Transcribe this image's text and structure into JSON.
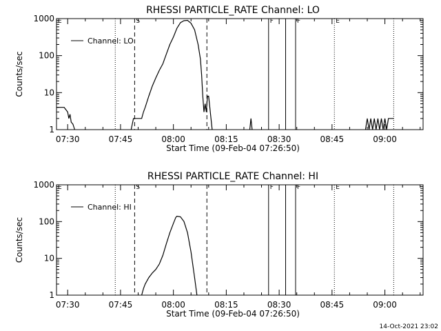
{
  "footer_timestamp": "14-Oct-2021 23:02",
  "chart_data": [
    {
      "type": "line",
      "title": "RHESSI PARTICLE_RATE Channel: LO",
      "xlabel": "Start Time (09-Feb-04 07:26:50)",
      "ylabel": "Counts/sec",
      "yscale": "log",
      "ylim": [
        1,
        1000
      ],
      "xlim": [
        "07:26:50",
        "09:10:50"
      ],
      "xticks": [
        "07:30",
        "07:45",
        "08:00",
        "08:15",
        "08:30",
        "08:45",
        "09:00"
      ],
      "yticks": [
        "1",
        "10",
        "100",
        "1000"
      ],
      "grid": false,
      "legend": {
        "placement": "top-left",
        "entries": [
          "Channel: LO"
        ]
      },
      "markers": [
        {
          "time": "07:26:50",
          "style": "dotted",
          "label": "E"
        },
        {
          "time": "07:43:30",
          "style": "dotted",
          "label": ""
        },
        {
          "time": "07:49:00",
          "style": "dashed",
          "label": "S"
        },
        {
          "time": "08:09:30",
          "style": "dashed",
          "label": ""
        },
        {
          "time": "08:27:00",
          "style": "solid",
          "label": "F"
        },
        {
          "time": "08:31:50",
          "style": "solid",
          "label": ""
        },
        {
          "time": "08:34:40",
          "style": "solid",
          "label": "F"
        },
        {
          "time": "08:45:40",
          "style": "dotted",
          "label": "E"
        },
        {
          "time": "09:02:30",
          "style": "dotted",
          "label": ""
        }
      ],
      "series": [
        {
          "name": "Channel: LO",
          "segments": [
            [
              [
                "07:26:50",
                4
              ],
              [
                "07:29:00",
                4
              ],
              [
                "07:30:00",
                3
              ],
              [
                "07:30:20",
                2
              ],
              [
                "07:30:40",
                2.6
              ],
              [
                "07:31:00",
                1.6
              ],
              [
                "07:31:30",
                1.4
              ],
              [
                "07:32:00",
                1
              ]
            ],
            [
              [
                "07:48:00",
                1
              ],
              [
                "07:48:40",
                2
              ],
              [
                "07:51:00",
                2
              ],
              [
                "07:51:30",
                3
              ],
              [
                "07:52:00",
                4
              ],
              [
                "07:53:00",
                8
              ],
              [
                "07:54:00",
                15
              ],
              [
                "07:55:00",
                25
              ],
              [
                "07:56:00",
                40
              ],
              [
                "07:57:00",
                60
              ],
              [
                "07:58:00",
                110
              ],
              [
                "07:59:00",
                200
              ],
              [
                "08:00:00",
                320
              ],
              [
                "08:01:00",
                550
              ],
              [
                "08:02:00",
                780
              ],
              [
                "08:03:00",
                880
              ],
              [
                "08:04:00",
                900
              ],
              [
                "08:05:00",
                750
              ],
              [
                "08:06:00",
                500
              ],
              [
                "08:07:00",
                200
              ],
              [
                "08:07:40",
                80
              ],
              [
                "08:08:00",
                30
              ],
              [
                "08:08:20",
                8
              ],
              [
                "08:08:40",
                3
              ],
              [
                "08:09:00",
                5
              ],
              [
                "08:09:20",
                3
              ],
              [
                "08:09:40",
                8
              ],
              [
                "08:10:00",
                8
              ],
              [
                "08:10:20",
                4
              ],
              [
                "08:10:40",
                2
              ],
              [
                "08:11:00",
                1
              ]
            ],
            [
              [
                "08:21:40",
                1
              ],
              [
                "08:22:00",
                2
              ],
              [
                "08:22:20",
                1
              ]
            ],
            [
              [
                "08:54:30",
                1
              ],
              [
                "08:55:00",
                2
              ],
              [
                "08:55:30",
                1
              ],
              [
                "08:56:00",
                2
              ],
              [
                "08:56:30",
                1
              ],
              [
                "08:57:00",
                2
              ],
              [
                "08:57:30",
                1
              ],
              [
                "08:58:00",
                2
              ],
              [
                "08:58:30",
                1
              ],
              [
                "08:59:00",
                2
              ],
              [
                "08:59:30",
                1
              ],
              [
                "09:00:00",
                2
              ],
              [
                "09:00:30",
                1
              ],
              [
                "09:01:00",
                2
              ],
              [
                "09:02:30",
                2
              ]
            ]
          ]
        }
      ]
    },
    {
      "type": "line",
      "title": "RHESSI PARTICLE_RATE Channel: HI",
      "xlabel": "Start Time (09-Feb-04 07:26:50)",
      "ylabel": "Counts/sec",
      "yscale": "log",
      "ylim": [
        1,
        1000
      ],
      "xlim": [
        "07:26:50",
        "09:10:50"
      ],
      "xticks": [
        "07:30",
        "07:45",
        "08:00",
        "08:15",
        "08:30",
        "08:45",
        "09:00"
      ],
      "yticks": [
        "1",
        "10",
        "100",
        "1000"
      ],
      "grid": false,
      "legend": {
        "placement": "top-left",
        "entries": [
          "Channel: HI"
        ]
      },
      "markers": [
        {
          "time": "07:26:50",
          "style": "dotted",
          "label": "E"
        },
        {
          "time": "07:43:30",
          "style": "dotted",
          "label": ""
        },
        {
          "time": "07:49:00",
          "style": "dashed",
          "label": "S"
        },
        {
          "time": "08:09:30",
          "style": "dashed",
          "label": ""
        },
        {
          "time": "08:27:00",
          "style": "solid",
          "label": "F"
        },
        {
          "time": "08:31:50",
          "style": "solid",
          "label": ""
        },
        {
          "time": "08:34:40",
          "style": "solid",
          "label": "F"
        },
        {
          "time": "08:45:40",
          "style": "dotted",
          "label": "E"
        },
        {
          "time": "09:02:30",
          "style": "dotted",
          "label": ""
        }
      ],
      "series": [
        {
          "name": "Channel: HI",
          "segments": [
            [
              [
                "07:51:00",
                1
              ],
              [
                "07:51:30",
                1.5
              ],
              [
                "07:52:00",
                2
              ],
              [
                "07:53:00",
                3
              ],
              [
                "07:54:00",
                4
              ],
              [
                "07:55:00",
                5
              ],
              [
                "07:56:00",
                7
              ],
              [
                "07:57:00",
                12
              ],
              [
                "07:58:00",
                25
              ],
              [
                "07:59:00",
                50
              ],
              [
                "08:00:00",
                90
              ],
              [
                "08:00:40",
                130
              ],
              [
                "08:01:00",
                140
              ],
              [
                "08:02:00",
                135
              ],
              [
                "08:03:00",
                100
              ],
              [
                "08:04:00",
                50
              ],
              [
                "08:05:00",
                15
              ],
              [
                "08:06:00",
                3
              ],
              [
                "08:06:40",
                1
              ]
            ]
          ]
        }
      ]
    }
  ]
}
